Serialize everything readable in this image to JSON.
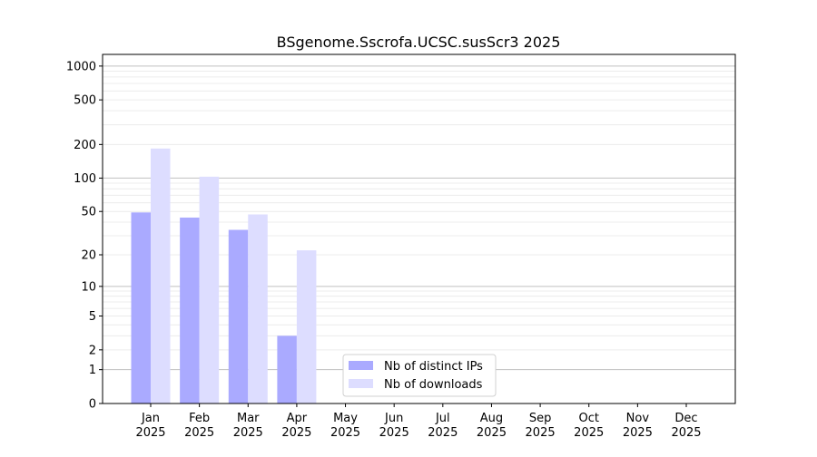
{
  "chart_data": {
    "type": "bar",
    "title": "BSgenome.Sscrofa.UCSC.susScr3 2025",
    "xlabel": "",
    "ylabel": "",
    "yscale": "log(1+y)",
    "ylim": [
      0,
      1270
    ],
    "yticks": [
      0,
      1,
      2,
      5,
      10,
      20,
      50,
      100,
      200,
      500,
      1000
    ],
    "grid": true,
    "legend_position": "lower-center",
    "categories": [
      "Jan\n2025",
      "Feb\n2025",
      "Mar\n2025",
      "Apr\n2025",
      "May\n2025",
      "Jun\n2025",
      "Jul\n2025",
      "Aug\n2025",
      "Sep\n2025",
      "Oct\n2025",
      "Nov\n2025",
      "Dec\n2025"
    ],
    "series": [
      {
        "name": "Nb of distinct IPs",
        "color": "#aaaaff",
        "values": [
          49,
          44,
          34,
          3,
          0,
          0,
          0,
          0,
          0,
          0,
          0,
          0
        ]
      },
      {
        "name": "Nb of downloads",
        "color": "#ddddff",
        "values": [
          184,
          103,
          47,
          22,
          0,
          0,
          0,
          0,
          0,
          0,
          0,
          0
        ]
      }
    ]
  }
}
